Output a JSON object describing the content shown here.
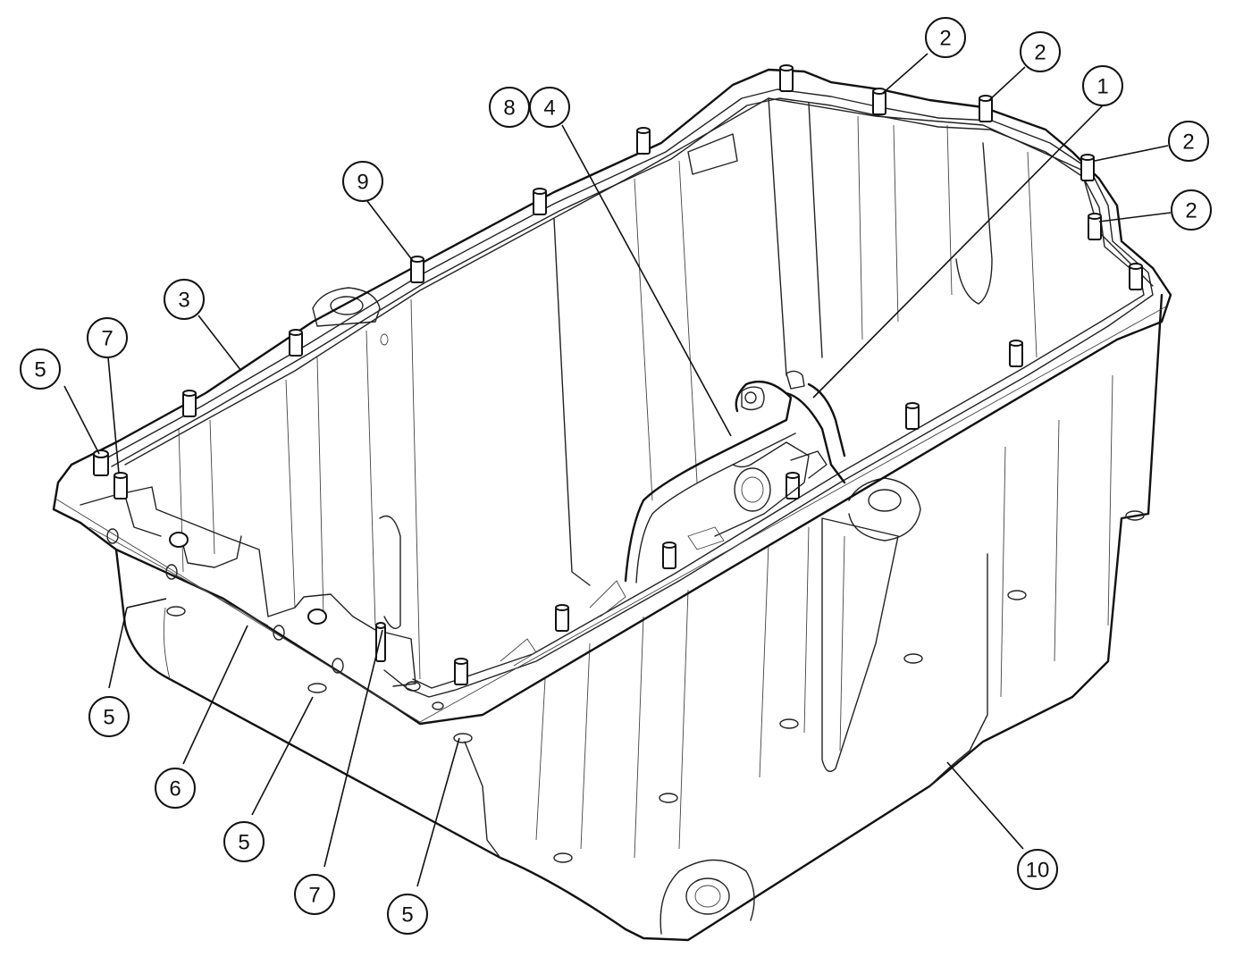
{
  "callouts": [
    {
      "label": "1",
      "id": "oil-suction-tube"
    },
    {
      "label": "2",
      "id": "flange-bolt-rear-1"
    },
    {
      "label": "2",
      "id": "flange-bolt-rear-2"
    },
    {
      "label": "2",
      "id": "flange-bolt-rear-3"
    },
    {
      "label": "2",
      "id": "flange-bolt-rear-4"
    },
    {
      "label": "3",
      "id": "pan-gasket"
    },
    {
      "label": "4",
      "id": "pickup-bracket"
    },
    {
      "label": "5",
      "id": "front-bolt-top"
    },
    {
      "label": "5",
      "id": "front-bolt-lower-1"
    },
    {
      "label": "5",
      "id": "front-bolt-lower-2"
    },
    {
      "label": "5",
      "id": "front-bolt-lower-3"
    },
    {
      "label": "6",
      "id": "front-cover-seal"
    },
    {
      "label": "7",
      "id": "dowel-pin-1"
    },
    {
      "label": "7",
      "id": "dowel-pin-2"
    },
    {
      "label": "8",
      "id": "pickup-screw"
    },
    {
      "label": "9",
      "id": "stud"
    },
    {
      "label": "10",
      "id": "oil-pan"
    }
  ]
}
